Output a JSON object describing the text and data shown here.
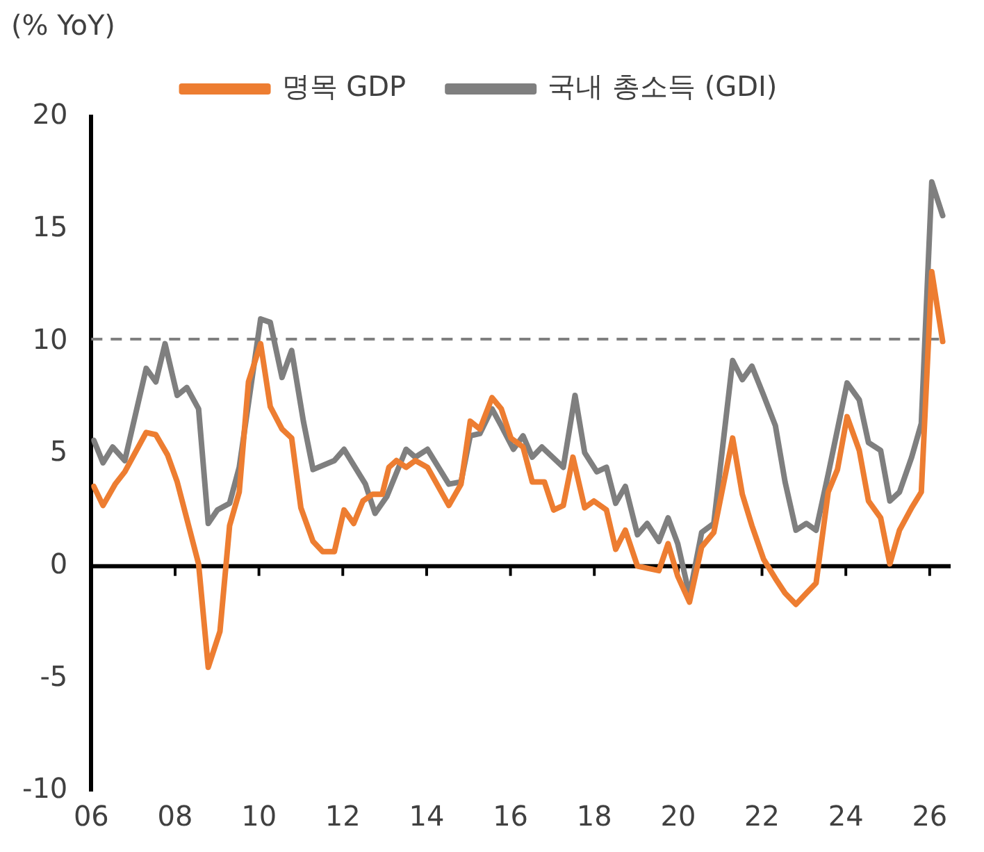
{
  "chart_data": {
    "type": "line",
    "ylabel": "(% YoY)",
    "legend": "top",
    "grid": false,
    "marker": "none",
    "line_style": "solid",
    "xlim": [
      2006,
      2026.5
    ],
    "ylim": [
      -10,
      20
    ],
    "xticks": [
      {
        "value": 2006,
        "label": "06"
      },
      {
        "value": 2008,
        "label": "08"
      },
      {
        "value": 2010,
        "label": "10"
      },
      {
        "value": 2012,
        "label": "12"
      },
      {
        "value": 2014,
        "label": "14"
      },
      {
        "value": 2016,
        "label": "16"
      },
      {
        "value": 2018,
        "label": "18"
      },
      {
        "value": 2020,
        "label": "20"
      },
      {
        "value": 2022,
        "label": "22"
      },
      {
        "value": 2024,
        "label": "24"
      },
      {
        "value": 2026,
        "label": "26"
      }
    ],
    "yticks": [
      -10,
      -5,
      0,
      5,
      10,
      15,
      20
    ],
    "ref_lines": [
      {
        "axis": "y",
        "value": 10.1,
        "color": "#7f7f7f",
        "line_style": "dashed"
      }
    ],
    "series": [
      {
        "name": "명목 GDP",
        "color": "#ed7d31",
        "x": [
          2006.06,
          2006.28,
          2006.57,
          2006.8,
          2007.31,
          2007.54,
          2007.82,
          2008.05,
          2008.56,
          2008.79,
          2009.07,
          2009.3,
          2009.53,
          2009.75,
          2010.04,
          2010.27,
          2010.55,
          2010.78,
          2011.0,
          2011.29,
          2011.52,
          2011.8,
          2012.03,
          2012.26,
          2012.48,
          2012.71,
          2012.94,
          2013.1,
          2013.28,
          2013.51,
          2013.73,
          2014.02,
          2014.53,
          2014.82,
          2015.04,
          2015.27,
          2015.56,
          2015.78,
          2016.01,
          2016.3,
          2016.52,
          2016.81,
          2017.03,
          2017.26,
          2017.49,
          2017.77,
          2017.99,
          2018.29,
          2018.51,
          2018.74,
          2019.03,
          2019.54,
          2019.76,
          2019.99,
          2020.27,
          2020.56,
          2020.85,
          2021.3,
          2021.53,
          2021.76,
          2022.04,
          2022.32,
          2022.55,
          2022.81,
          2023.06,
          2023.29,
          2023.58,
          2023.8,
          2024.03,
          2024.32,
          2024.54,
          2024.83,
          2025.05,
          2025.28,
          2025.57,
          2025.8,
          2026.05,
          2026.31
        ],
        "values": [
          3.55,
          2.7,
          3.65,
          4.2,
          5.95,
          5.85,
          4.95,
          3.75,
          0.1,
          -4.5,
          -2.9,
          1.8,
          3.3,
          8.2,
          9.9,
          7.1,
          6.1,
          5.7,
          2.6,
          1.1,
          0.65,
          0.65,
          2.5,
          1.9,
          2.9,
          3.2,
          3.2,
          4.4,
          4.7,
          4.4,
          4.7,
          4.4,
          2.7,
          3.65,
          6.45,
          6.1,
          7.5,
          7.0,
          5.7,
          5.3,
          3.75,
          3.75,
          2.5,
          2.7,
          4.85,
          2.6,
          2.9,
          2.5,
          0.75,
          1.6,
          0.0,
          -0.2,
          1.0,
          -0.45,
          -1.6,
          0.85,
          1.5,
          5.7,
          3.2,
          1.8,
          0.3,
          -0.55,
          -1.2,
          -1.7,
          -1.2,
          -0.75,
          3.3,
          4.3,
          6.65,
          5.15,
          2.9,
          2.15,
          0.1,
          1.6,
          2.6,
          3.3,
          13.1,
          10.0
        ]
      },
      {
        "name": "국내 총소득 (GDI)",
        "color": "#7f7f7f",
        "x": [
          2006.06,
          2006.28,
          2006.51,
          2006.8,
          2007.31,
          2007.54,
          2007.76,
          2008.05,
          2008.28,
          2008.56,
          2008.79,
          2009.01,
          2009.3,
          2009.53,
          2010.04,
          2010.27,
          2010.55,
          2010.78,
          2011.06,
          2011.29,
          2011.8,
          2012.03,
          2012.54,
          2012.77,
          2013.05,
          2013.51,
          2013.73,
          2014.02,
          2014.53,
          2014.82,
          2015.04,
          2015.27,
          2015.56,
          2015.78,
          2016.07,
          2016.3,
          2016.52,
          2016.75,
          2017.26,
          2017.54,
          2017.77,
          2018.06,
          2018.29,
          2018.51,
          2018.74,
          2019.03,
          2019.26,
          2019.54,
          2019.76,
          2019.99,
          2020.27,
          2020.56,
          2020.85,
          2021.3,
          2021.53,
          2021.76,
          2022.04,
          2022.32,
          2022.55,
          2022.81,
          2023.06,
          2023.29,
          2023.58,
          2024.03,
          2024.32,
          2024.54,
          2024.83,
          2025.05,
          2025.28,
          2025.57,
          2025.8,
          2026.05,
          2026.31
        ],
        "values": [
          5.6,
          4.6,
          5.3,
          4.7,
          8.8,
          8.2,
          9.9,
          7.6,
          7.95,
          7.0,
          1.9,
          2.5,
          2.8,
          4.4,
          11.0,
          10.85,
          8.4,
          9.6,
          6.45,
          4.3,
          4.7,
          5.2,
          3.65,
          2.35,
          3.1,
          5.2,
          4.85,
          5.2,
          3.65,
          3.75,
          5.8,
          5.9,
          7.0,
          6.25,
          5.2,
          5.8,
          4.85,
          5.3,
          4.4,
          7.6,
          5.05,
          4.2,
          4.4,
          2.8,
          3.55,
          1.4,
          1.9,
          1.1,
          2.15,
          1.0,
          -1.3,
          1.5,
          1.9,
          9.15,
          8.3,
          8.9,
          7.6,
          6.25,
          3.75,
          1.6,
          1.9,
          1.6,
          4.1,
          8.15,
          7.4,
          5.5,
          5.15,
          2.9,
          3.3,
          4.85,
          6.35,
          17.1,
          15.6
        ]
      }
    ]
  }
}
